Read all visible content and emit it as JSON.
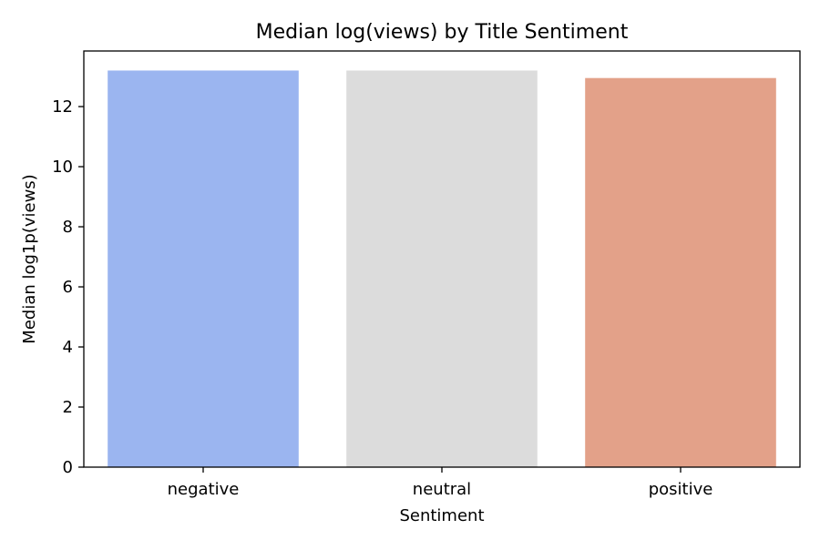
{
  "chart_data": {
    "type": "bar",
    "title": "Median log(views) by Title Sentiment",
    "xlabel": "Sentiment",
    "ylabel": "Median log1p(views)",
    "categories": [
      "negative",
      "neutral",
      "positive"
    ],
    "values": [
      13.2,
      13.2,
      12.95
    ],
    "colors": [
      "#9bb5f0",
      "#dcdcdc",
      "#e3a189"
    ],
    "ylim": [
      0,
      13.85
    ],
    "yticks": [
      0,
      2,
      4,
      6,
      8,
      10,
      12
    ],
    "grid": false,
    "legend": "none"
  }
}
